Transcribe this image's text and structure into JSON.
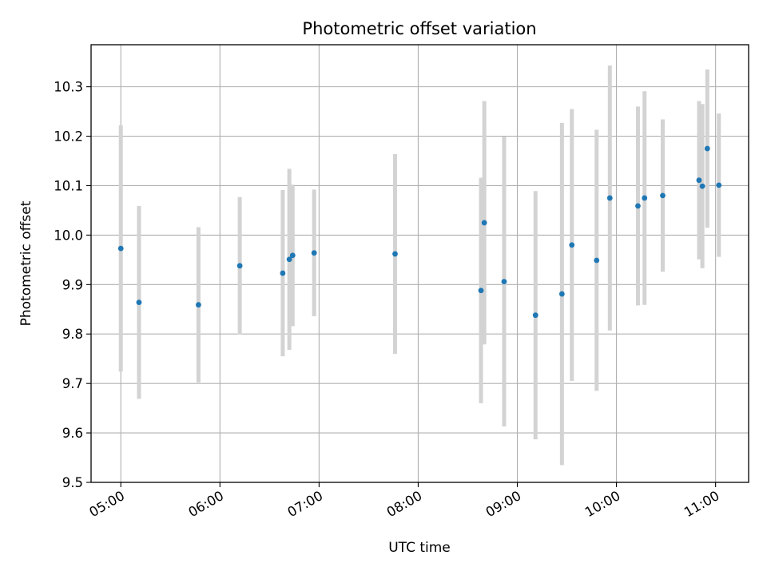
{
  "chart_data": {
    "type": "scatter",
    "title": "Photometric offset variation",
    "xlabel": "UTC time",
    "ylabel": "Photometric offset",
    "x_unit": "UTC time (HH:MM)",
    "xlim": [
      "04:42",
      "11:20"
    ],
    "ylim": [
      9.5,
      10.385
    ],
    "x_ticks": [
      "05:00",
      "06:00",
      "07:00",
      "08:00",
      "09:00",
      "10:00",
      "11:00"
    ],
    "y_ticks": [
      9.5,
      9.6,
      9.7,
      9.8,
      9.9,
      10.0,
      10.1,
      10.2,
      10.3
    ],
    "y_tick_labels": [
      "9.5",
      "9.6",
      "9.7",
      "9.8",
      "9.9",
      "10.0",
      "10.1",
      "10.2",
      "10.3"
    ],
    "grid": true,
    "colors": {
      "point": "#1f77b4",
      "errorbar": "#d3d3d3",
      "grid": "#b0b0b0"
    },
    "points": [
      {
        "t": "05:00",
        "y": 9.973,
        "yerr": 0.249
      },
      {
        "t": "05:11",
        "y": 9.864,
        "yerr": 0.195
      },
      {
        "t": "05:47",
        "y": 9.859,
        "yerr": 0.157
      },
      {
        "t": "06:12",
        "y": 9.938,
        "yerr": 0.139
      },
      {
        "t": "06:38",
        "y": 9.923,
        "yerr": 0.168
      },
      {
        "t": "06:42",
        "y": 9.951,
        "yerr": 0.183
      },
      {
        "t": "06:44",
        "y": 9.959,
        "yerr": 0.143
      },
      {
        "t": "06:57",
        "y": 9.964,
        "yerr": 0.128
      },
      {
        "t": "07:46",
        "y": 9.962,
        "yerr": 0.202
      },
      {
        "t": "08:38",
        "y": 9.888,
        "yerr": 0.228
      },
      {
        "t": "08:40",
        "y": 10.025,
        "yerr": 0.246
      },
      {
        "t": "08:52",
        "y": 9.906,
        "yerr": 0.293
      },
      {
        "t": "09:11",
        "y": 9.838,
        "yerr": 0.251
      },
      {
        "t": "09:27",
        "y": 9.881,
        "yerr": 0.346
      },
      {
        "t": "09:33",
        "y": 9.98,
        "yerr": 0.275
      },
      {
        "t": "09:48",
        "y": 9.949,
        "yerr": 0.264
      },
      {
        "t": "09:56",
        "y": 10.075,
        "yerr": 0.268
      },
      {
        "t": "10:13",
        "y": 10.059,
        "yerr": 0.201
      },
      {
        "t": "10:17",
        "y": 10.075,
        "yerr": 0.216
      },
      {
        "t": "10:28",
        "y": 10.08,
        "yerr": 0.154
      },
      {
        "t": "10:50",
        "y": 10.111,
        "yerr": 0.16
      },
      {
        "t": "10:52",
        "y": 10.099,
        "yerr": 0.166
      },
      {
        "t": "10:55",
        "y": 10.175,
        "yerr": 0.16
      },
      {
        "t": "11:02",
        "y": 10.101,
        "yerr": 0.145
      }
    ]
  }
}
